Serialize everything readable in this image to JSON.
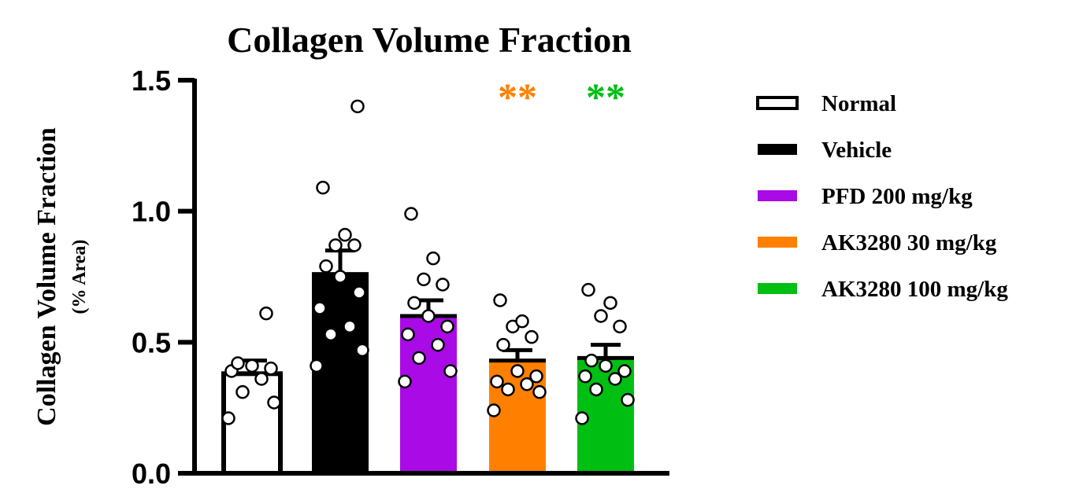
{
  "chart_data": {
    "type": "bar",
    "title": "Collagen Volume Fraction",
    "ylabel": "Collagen Volume Fraction",
    "ylabel_sub": "(% Area)",
    "xlabel": "",
    "ylim": [
      0,
      1.5
    ],
    "yticks": [
      0.0,
      0.5,
      1.0,
      1.5
    ],
    "ytick_labels": [
      "0.0",
      "0.5",
      "1.0",
      "1.5"
    ],
    "legend_position": "right",
    "grid": false,
    "categories": [
      "Normal",
      "Vehicle",
      "PFD 200 mg/kg",
      "AK3280 30 mg/kg",
      "AK3280 100 mg/kg"
    ],
    "values": [
      0.38,
      0.76,
      0.6,
      0.43,
      0.44
    ],
    "errors": [
      0.05,
      0.09,
      0.06,
      0.04,
      0.05
    ],
    "fills": [
      "#ffffff",
      "#000000",
      "#a90ae6",
      "#ff8000",
      "#00bf13"
    ],
    "significance": [
      "",
      "",
      "",
      "**",
      "**"
    ],
    "significance_colors": [
      "",
      "",
      "",
      "#ff8000",
      "#00bf13"
    ],
    "points": [
      [
        0.21,
        0.27,
        0.31,
        0.36,
        0.39,
        0.4,
        0.41,
        0.42,
        0.61
      ],
      [
        0.41,
        0.47,
        0.53,
        0.56,
        0.63,
        0.69,
        0.75,
        0.79,
        0.87,
        0.87,
        0.91,
        1.09,
        1.4
      ],
      [
        0.35,
        0.39,
        0.44,
        0.49,
        0.53,
        0.56,
        0.6,
        0.65,
        0.72,
        0.74,
        0.82,
        0.99
      ],
      [
        0.24,
        0.31,
        0.32,
        0.34,
        0.35,
        0.37,
        0.39,
        0.49,
        0.52,
        0.56,
        0.58,
        0.66
      ],
      [
        0.21,
        0.28,
        0.32,
        0.36,
        0.37,
        0.39,
        0.41,
        0.43,
        0.56,
        0.6,
        0.65,
        0.7
      ]
    ]
  }
}
